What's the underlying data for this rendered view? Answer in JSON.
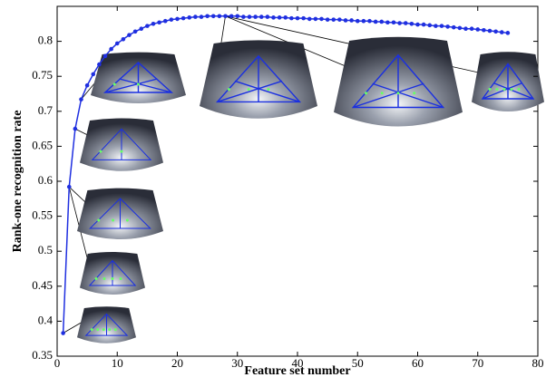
{
  "chart_data": {
    "type": "line",
    "x_label": "Feature set number",
    "y_label": "Rank-one recognition rate",
    "x": [
      1,
      2,
      3,
      4,
      5,
      6,
      7,
      8,
      9,
      10,
      11,
      12,
      13,
      14,
      15,
      16,
      17,
      18,
      19,
      20,
      21,
      22,
      23,
      24,
      25,
      26,
      27,
      28,
      29,
      30,
      31,
      32,
      33,
      34,
      35,
      36,
      37,
      38,
      39,
      40,
      41,
      42,
      43,
      44,
      45,
      46,
      47,
      48,
      49,
      50,
      51,
      52,
      53,
      54,
      55,
      56,
      57,
      58,
      59,
      60,
      61,
      62,
      63,
      64,
      65,
      66,
      67,
      68,
      69,
      70,
      71,
      72,
      73,
      74,
      75
    ],
    "series": [
      {
        "color": "#1f2fe0",
        "values": [
          0.383,
          0.592,
          0.675,
          0.717,
          0.737,
          0.753,
          0.767,
          0.779,
          0.789,
          0.797,
          0.803,
          0.809,
          0.814,
          0.818,
          0.822,
          0.825,
          0.827,
          0.829,
          0.831,
          0.832,
          0.833,
          0.834,
          0.835,
          0.835,
          0.836,
          0.836,
          0.836,
          0.836,
          0.836,
          0.836,
          0.835,
          0.835,
          0.835,
          0.835,
          0.835,
          0.834,
          0.834,
          0.834,
          0.833,
          0.833,
          0.833,
          0.832,
          0.832,
          0.832,
          0.831,
          0.831,
          0.831,
          0.83,
          0.83,
          0.829,
          0.829,
          0.829,
          0.828,
          0.828,
          0.827,
          0.827,
          0.826,
          0.826,
          0.825,
          0.824,
          0.824,
          0.823,
          0.822,
          0.822,
          0.821,
          0.82,
          0.819,
          0.818,
          0.818,
          0.817,
          0.816,
          0.815,
          0.814,
          0.813,
          0.812
        ]
      }
    ],
    "xlim": [
      0,
      80
    ],
    "xticks": [
      0,
      10,
      20,
      30,
      40,
      50,
      60,
      70,
      80
    ],
    "ylim": [
      0.35,
      0.85
    ],
    "yticks": [
      0.35,
      0.4,
      0.45,
      0.5,
      0.55,
      0.6,
      0.65,
      0.7,
      0.75,
      0.8
    ]
  }
}
